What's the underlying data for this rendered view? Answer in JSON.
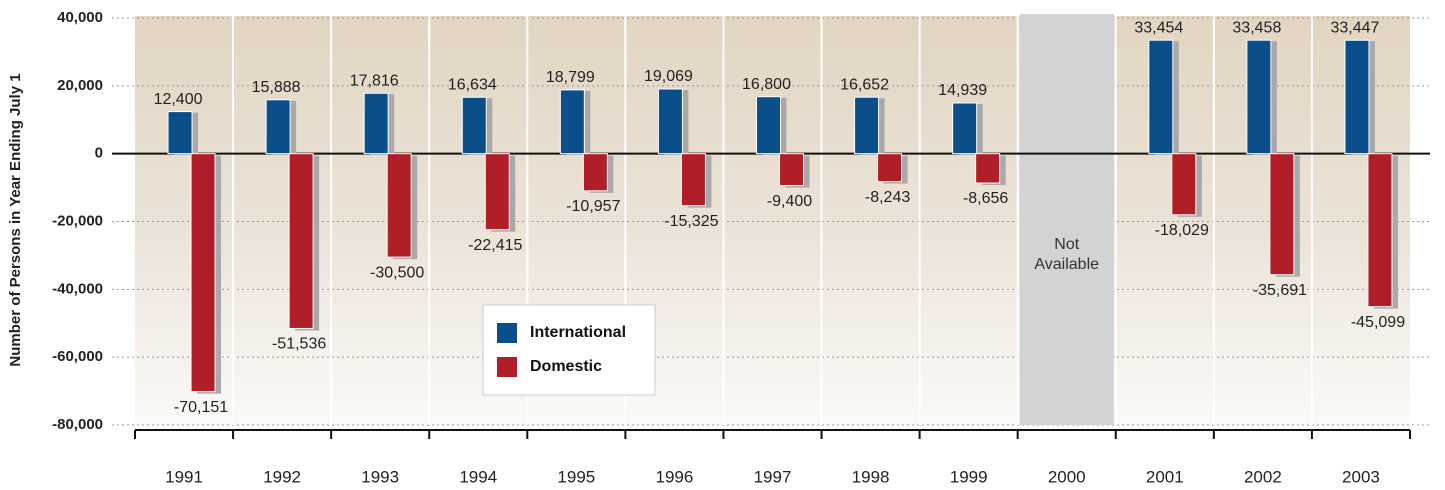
{
  "chart_data": {
    "type": "bar",
    "ylabel": "Number of Persons in Year Ending July 1",
    "categories": [
      "1991",
      "1992",
      "1993",
      "1994",
      "1995",
      "1996",
      "1997",
      "1998",
      "1999",
      "2000",
      "2001",
      "2002",
      "2003"
    ],
    "series": [
      {
        "name": "International",
        "color": "#0b4f8a",
        "values": [
          12400,
          15888,
          17816,
          16634,
          18799,
          19069,
          16800,
          16652,
          14939,
          null,
          33454,
          33458,
          33447
        ],
        "value_labels": [
          "12,400",
          "15,888",
          "17,816",
          "16,634",
          "18,799",
          "19,069",
          "16,800",
          "16,652",
          "14,939",
          null,
          "33,454",
          "33,458",
          "33,447"
        ]
      },
      {
        "name": "Domestic",
        "color": "#b01e28",
        "values": [
          -70151,
          -51536,
          -30500,
          -22415,
          -10957,
          -15325,
          -9400,
          -8243,
          -8656,
          null,
          -18029,
          -35691,
          -45099
        ],
        "value_labels": [
          "-70,151",
          "-51,536",
          "-30,500",
          "-22,415",
          "-10,957",
          "-15,325",
          "-9,400",
          "-8,243",
          "-8,656",
          null,
          "-18,029",
          "-35,691",
          "-45,099"
        ]
      }
    ],
    "annotation": "Not Available",
    "ylim": [
      -80000,
      40000
    ],
    "yticks": [
      {
        "value": -80000,
        "label": "-80,000"
      },
      {
        "value": -60000,
        "label": "-60,000"
      },
      {
        "value": -40000,
        "label": "-40,000"
      },
      {
        "value": -20000,
        "label": "-20,000"
      },
      0,
      {
        "value": 20000,
        "label": "20,000"
      },
      {
        "value": 40000,
        "label": "40,000"
      }
    ],
    "grid": true
  }
}
